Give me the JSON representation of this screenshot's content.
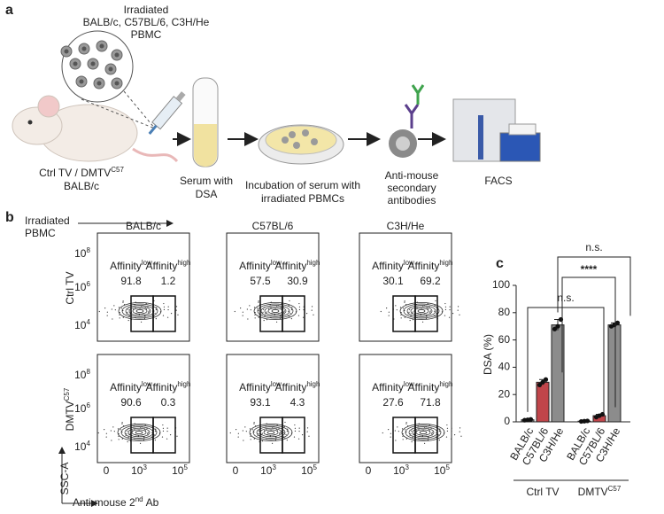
{
  "panel_labels": {
    "a": "a",
    "b": "b",
    "c": "c"
  },
  "schematic": {
    "pbmc": [
      "Irradiated",
      "BALB/c, C57BL/6, C3H/He",
      "PBMC"
    ],
    "mouse": {
      "line1": "Ctrl TV / DMTV",
      "sup": "C57",
      "line2": "BALB/c"
    },
    "serum": [
      "Serum with",
      "DSA"
    ],
    "incubation": [
      "Incubation of serum with",
      "irradiated PBMCs"
    ],
    "secondary": [
      "Anti-mouse",
      "secondary",
      "antibodies"
    ],
    "facs": "FACS"
  },
  "flow": {
    "header": [
      "Irradiated",
      "PBMC"
    ],
    "strains": [
      {
        "name": "BALB/c",
        "color": "#c8892e"
      },
      {
        "name": "C57BL/6",
        "color": "#c0343c"
      },
      {
        "name": "C3H/He",
        "color": "#808080"
      }
    ],
    "rows": [
      {
        "label": "Ctrl TV"
      },
      {
        "label": "DMTV",
        "sup": "C57"
      }
    ],
    "gate_label": "Affinity",
    "gate_names": [
      "low",
      "high"
    ],
    "values": [
      [
        [
          91.8,
          1.2
        ],
        [
          57.5,
          30.9
        ],
        [
          30.1,
          69.2
        ]
      ],
      [
        [
          90.6,
          0.3
        ],
        [
          93.1,
          4.3
        ],
        [
          27.6,
          71.8
        ]
      ]
    ],
    "yticks": [
      [
        "10",
        "8"
      ],
      [
        "10",
        "6"
      ],
      [
        "10",
        "4"
      ]
    ],
    "xticks": [
      "0",
      [
        "10",
        "3"
      ],
      [
        "10",
        "5"
      ]
    ],
    "ylabel": "SSC-A",
    "xlabel": {
      "text": "Anti-mouse 2",
      "sup": "nd",
      "rest": "Ab"
    }
  },
  "chart_data": {
    "type": "bar",
    "ylabel": "DSA (%)",
    "categories": [
      "BALB/c",
      "C57BL/6",
      "C3H/He"
    ],
    "category_colors": [
      "#c8892e",
      "#c0343c",
      "#808080"
    ],
    "bar_colors": [
      "#9a9a9a",
      "#c0454a",
      "#8c8c8c"
    ],
    "series": [
      {
        "name": "Ctrl TV",
        "values": [
          1.5,
          29,
          71
        ],
        "errors": [
          0.5,
          2,
          4
        ],
        "points": [
          [
            1.2,
            1.5,
            1.8
          ],
          [
            27,
            29,
            31
          ],
          [
            68,
            70,
            75
          ]
        ]
      },
      {
        "name": "DMTV",
        "name_sup": "C57",
        "values": [
          0.5,
          4.5,
          71
        ],
        "errors": [
          0.3,
          1,
          1.5
        ],
        "points": [
          [
            0.3,
            0.5,
            0.7
          ],
          [
            3.5,
            4.5,
            5.5
          ],
          [
            70,
            71,
            72.5
          ]
        ]
      }
    ],
    "annotations": [
      "n.s.",
      "****",
      "n.s."
    ],
    "ylim": [
      0,
      100
    ],
    "yticks": [
      0,
      20,
      40,
      60,
      80,
      100
    ]
  }
}
